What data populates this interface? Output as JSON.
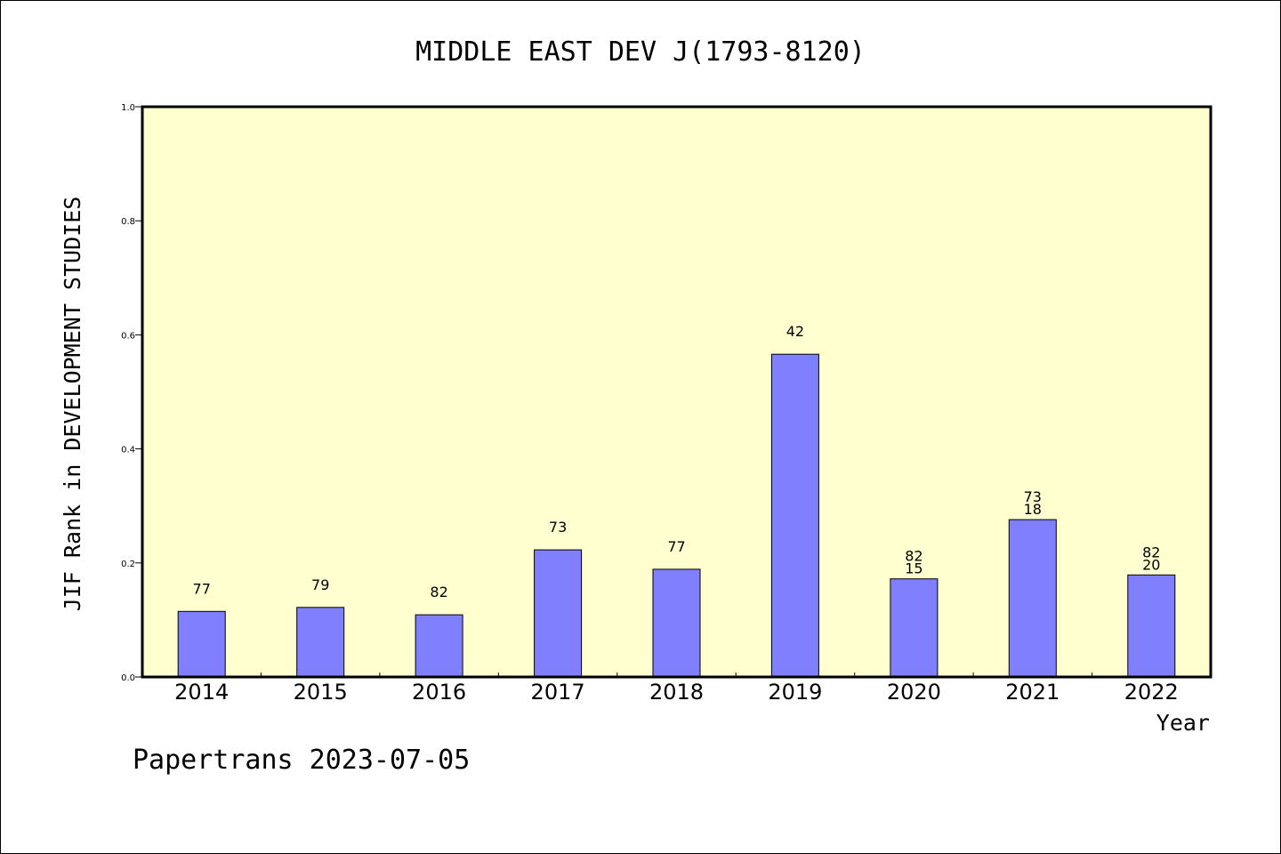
{
  "chart_data": {
    "type": "bar",
    "title": "MIDDLE EAST DEV J(1793-8120)",
    "xlabel": "Year",
    "ylabel": "JIF Rank in DEVELOPMENT STUDIES",
    "ylim": [
      0,
      1.0
    ],
    "yticks": [
      "0.0",
      "0.2",
      "0.4",
      "0.6",
      "0.8",
      "1.0"
    ],
    "categories": [
      "2014",
      "2015",
      "2016",
      "2017",
      "2018",
      "2019",
      "2020",
      "2021",
      "2022"
    ],
    "values": [
      0.115,
      0.122,
      0.109,
      0.223,
      0.189,
      0.566,
      0.172,
      0.276,
      0.179
    ],
    "bar_labels": [
      [
        "77"
      ],
      [
        "79"
      ],
      [
        "82"
      ],
      [
        "73"
      ],
      [
        "77"
      ],
      [
        "42"
      ],
      [
        "82",
        "15"
      ],
      [
        "73",
        "18"
      ],
      [
        "82",
        "20"
      ]
    ],
    "grid": false,
    "colors": {
      "plot_background": "#ffffd0",
      "bar_fill": "#8080ff",
      "bar_stroke": "#000000",
      "axis": "#000000"
    }
  },
  "footer": {
    "credit": "Papertrans 2023-07-05"
  }
}
